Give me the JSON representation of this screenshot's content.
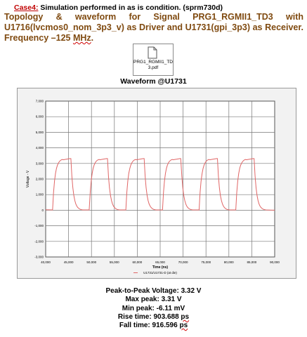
{
  "case_line": {
    "tag": "Case4:",
    "text": " Simulation performed in as is condition. (sprm730d)"
  },
  "title": {
    "before": "Topology & waveform for Signal PRG1_RGMII1_TD3 with U1716(lvcmos0_nom_3p3_v) as Driver and U1731(gpi_3p3) as Receiver. Frequency –125 ",
    "unit": "MHz",
    "after": "."
  },
  "attachment": {
    "icon": "pdf-document-icon",
    "filename": "PRG1_RGMII1_TD3.pdf"
  },
  "waveform_title": "Waveform @U1731",
  "chart_data": {
    "type": "line",
    "ylabel": "Voltage - V",
    "xlabel": "Time (ns)",
    "legend": "U1731/U1731-D (at die)",
    "xlim": [
      40000,
      90000
    ],
    "ylim": [
      -3000,
      7000
    ],
    "x_ticks": [
      "40,000",
      "45,000",
      "50,000",
      "55,000",
      "60,000",
      "65,000",
      "70,000",
      "75,000",
      "80,000",
      "85,000",
      "90,000"
    ],
    "y_ticks": [
      "7,000",
      "6,000",
      "5,000",
      "4,000",
      "3,000",
      "2,000",
      "1,000",
      "0",
      "-1,000",
      "-2,000",
      "-3,000"
    ],
    "series": [
      {
        "color": "#e06666",
        "periods_start_ns": [
          41500,
          49500,
          57500,
          65500,
          73500,
          81500
        ],
        "period_ns": 8000,
        "high_mV": 3310,
        "low_mV": -6,
        "rise_ps": 903.688,
        "fall_ps": 916.596
      }
    ]
  },
  "measurements": [
    {
      "text": "Peak-to-Peak Voltage: 3.32 V",
      "unit": ""
    },
    {
      "text": "Max peak: 3.31 V",
      "unit": ""
    },
    {
      "text": "Min peak: -6.11 mV",
      "unit": ""
    },
    {
      "text": "Rise time: 903.688 ",
      "unit": "ps"
    },
    {
      "text": "Fall time: 916.596 ",
      "unit": "ps"
    }
  ]
}
